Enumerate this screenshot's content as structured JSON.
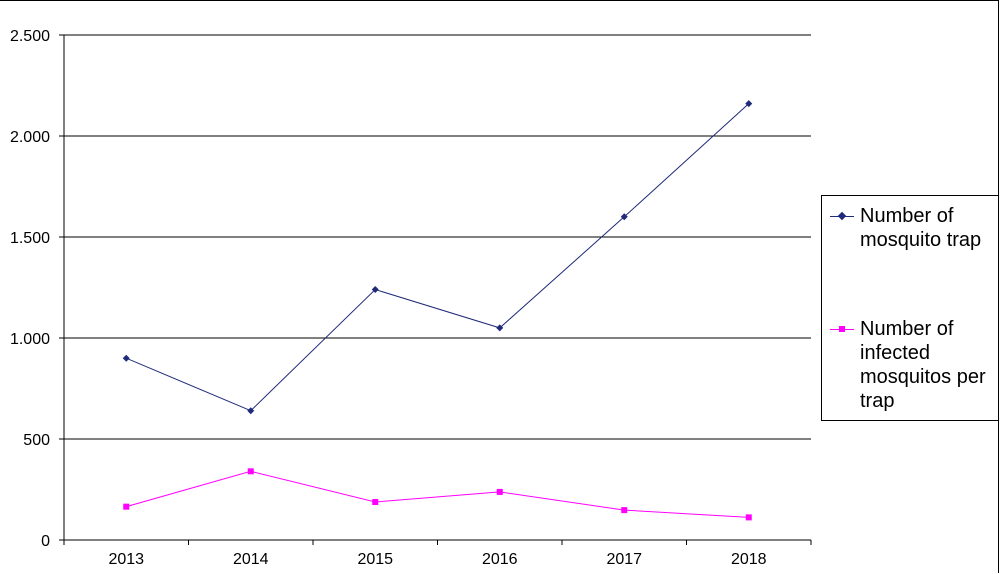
{
  "chart_data": {
    "type": "line",
    "categories": [
      "2013",
      "2014",
      "2015",
      "2016",
      "2017",
      "2018"
    ],
    "series": [
      {
        "name": "Number of mosquito trap",
        "values": [
          900,
          640,
          1240,
          1050,
          1600,
          2160
        ],
        "color": "#1f2a7a",
        "marker": "diamond"
      },
      {
        "name": "Number of infected mosquitos per trap",
        "values": [
          165,
          340,
          188,
          238,
          148,
          112
        ],
        "color": "#ff00ff",
        "marker": "square"
      }
    ],
    "ylim": [
      0,
      2500
    ],
    "yticks": [
      0,
      500,
      1000,
      1500,
      2000,
      2500
    ],
    "ytick_labels": [
      "0",
      "500",
      "1.000",
      "1.500",
      "2.000",
      "2.500"
    ],
    "grid": true,
    "legend": "right",
    "title": "",
    "xlabel": "",
    "ylabel": ""
  }
}
